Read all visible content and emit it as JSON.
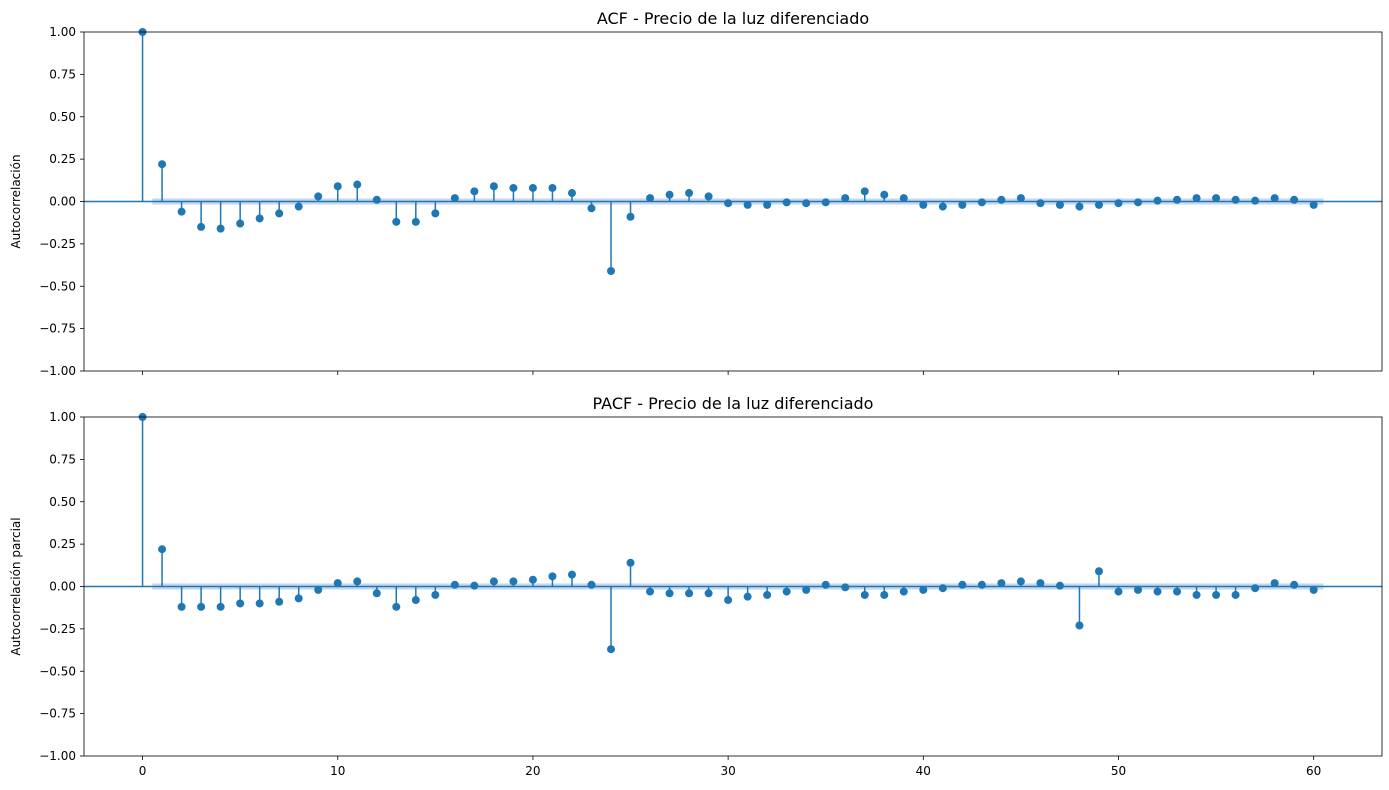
{
  "chart_data": [
    {
      "type": "stem",
      "title": "ACF - Precio de la luz diferenciado",
      "xlabel": "",
      "ylabel": "Autocorrelación",
      "xlim": [
        -3,
        63.5
      ],
      "ylim": [
        -1.0,
        1.0
      ],
      "x_ticks": [
        0,
        10,
        20,
        30,
        40,
        50,
        60
      ],
      "x_ticklabels_visible": false,
      "y_ticks": [
        -1.0,
        -0.75,
        -0.5,
        -0.25,
        0.0,
        0.25,
        0.5,
        0.75,
        1.0
      ],
      "y_ticklabels": [
        "−1.00",
        "−0.75",
        "−0.50",
        "−0.25",
        "0.00",
        "0.25",
        "0.50",
        "0.75",
        "1.00"
      ],
      "grid": false,
      "color": "#1f77b4",
      "confidence_band_color": "#aec7e8",
      "confidence_band": 0.018,
      "lags": [
        0,
        1,
        2,
        3,
        4,
        5,
        6,
        7,
        8,
        9,
        10,
        11,
        12,
        13,
        14,
        15,
        16,
        17,
        18,
        19,
        20,
        21,
        22,
        23,
        24,
        25,
        26,
        27,
        28,
        29,
        30,
        31,
        32,
        33,
        34,
        35,
        36,
        37,
        38,
        39,
        40,
        41,
        42,
        43,
        44,
        45,
        46,
        47,
        48,
        49,
        50,
        51,
        52,
        53,
        54,
        55,
        56,
        57,
        58,
        59,
        60
      ],
      "values": [
        1.0,
        0.22,
        -0.06,
        -0.15,
        -0.16,
        -0.13,
        -0.1,
        -0.07,
        -0.03,
        0.03,
        0.09,
        0.1,
        0.01,
        -0.12,
        -0.12,
        -0.07,
        0.02,
        0.06,
        0.09,
        0.08,
        0.08,
        0.08,
        0.05,
        -0.04,
        -0.41,
        -0.09,
        0.02,
        0.04,
        0.05,
        0.03,
        -0.01,
        -0.02,
        -0.02,
        -0.005,
        -0.01,
        -0.005,
        0.02,
        0.06,
        0.04,
        0.02,
        -0.02,
        -0.03,
        -0.02,
        -0.005,
        0.01,
        0.02,
        -0.01,
        -0.02,
        -0.03,
        -0.02,
        -0.01,
        -0.005,
        0.005,
        0.01,
        0.02,
        0.02,
        0.01,
        0.005,
        0.02,
        0.01,
        -0.02
      ]
    },
    {
      "type": "stem",
      "title": "PACF - Precio de la luz diferenciado",
      "xlabel": "",
      "ylabel": "Autocorrelación parcial",
      "xlim": [
        -3,
        63.5
      ],
      "ylim": [
        -1.0,
        1.0
      ],
      "x_ticks": [
        0,
        10,
        20,
        30,
        40,
        50,
        60
      ],
      "x_ticklabels": [
        "0",
        "10",
        "20",
        "30",
        "40",
        "50",
        "60"
      ],
      "y_ticks": [
        -1.0,
        -0.75,
        -0.5,
        -0.25,
        0.0,
        0.25,
        0.5,
        0.75,
        1.0
      ],
      "y_ticklabels": [
        "−1.00",
        "−0.75",
        "−0.50",
        "−0.25",
        "0.00",
        "0.25",
        "0.50",
        "0.75",
        "1.00"
      ],
      "grid": false,
      "color": "#1f77b4",
      "confidence_band_color": "#aec7e8",
      "confidence_band": 0.018,
      "lags": [
        0,
        1,
        2,
        3,
        4,
        5,
        6,
        7,
        8,
        9,
        10,
        11,
        12,
        13,
        14,
        15,
        16,
        17,
        18,
        19,
        20,
        21,
        22,
        23,
        24,
        25,
        26,
        27,
        28,
        29,
        30,
        31,
        32,
        33,
        34,
        35,
        36,
        37,
        38,
        39,
        40,
        41,
        42,
        43,
        44,
        45,
        46,
        47,
        48,
        49,
        50,
        51,
        52,
        53,
        54,
        55,
        56,
        57,
        58,
        59,
        60
      ],
      "values": [
        1.0,
        0.22,
        -0.12,
        -0.12,
        -0.12,
        -0.1,
        -0.1,
        -0.09,
        -0.07,
        -0.02,
        0.02,
        0.03,
        -0.04,
        -0.12,
        -0.08,
        -0.05,
        0.01,
        0.005,
        0.03,
        0.03,
        0.04,
        0.06,
        0.07,
        0.01,
        -0.37,
        0.14,
        -0.03,
        -0.04,
        -0.04,
        -0.04,
        -0.08,
        -0.06,
        -0.05,
        -0.03,
        -0.02,
        0.01,
        -0.005,
        -0.05,
        -0.05,
        -0.03,
        -0.02,
        -0.01,
        0.01,
        0.01,
        0.02,
        0.03,
        0.02,
        0.005,
        -0.23,
        0.09,
        -0.03,
        -0.02,
        -0.03,
        -0.03,
        -0.05,
        -0.05,
        -0.05,
        -0.01,
        0.02,
        0.01,
        -0.02
      ]
    }
  ]
}
